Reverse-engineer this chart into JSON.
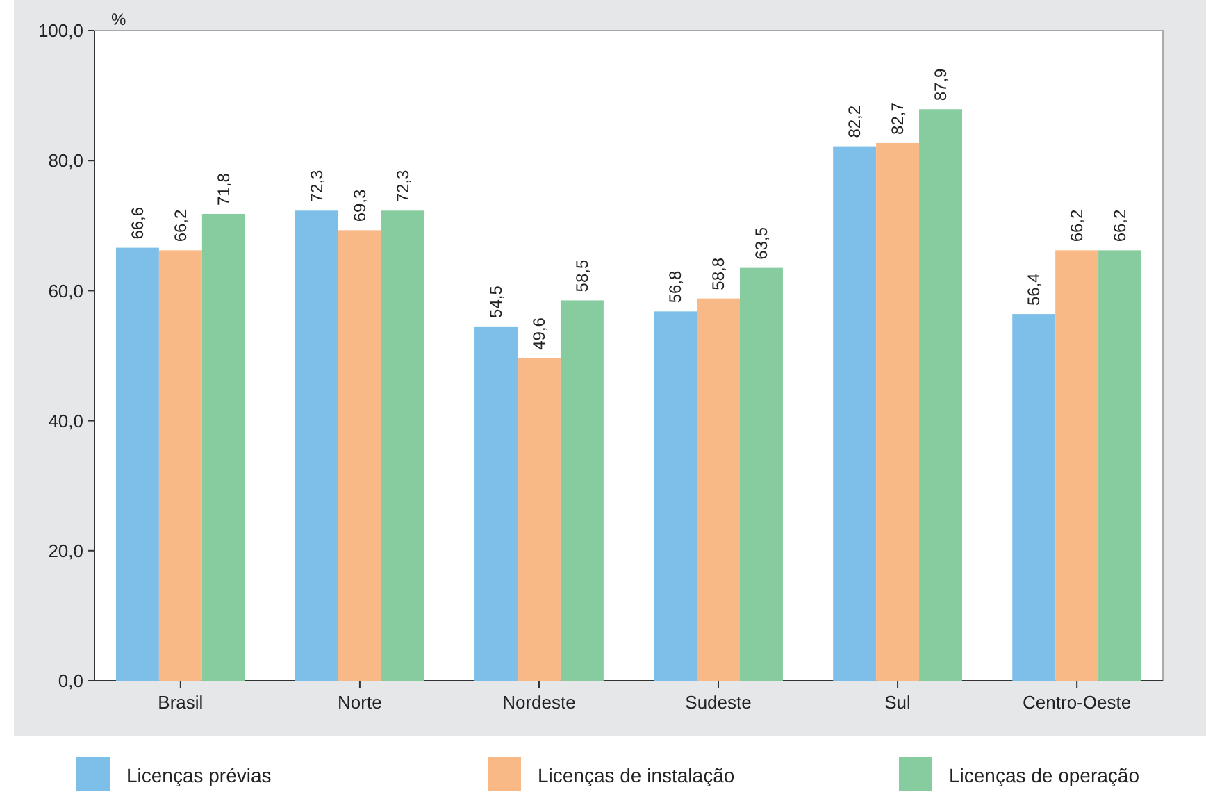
{
  "chart_data": {
    "type": "bar",
    "ylabel": "%",
    "categories": [
      "Brasil",
      "Norte",
      "Nordeste",
      "Sudeste",
      "Sul",
      "Centro-Oeste"
    ],
    "series": [
      {
        "name": "Licenças prévias",
        "color": "#7dbfe9",
        "values": [
          66.6,
          72.3,
          54.5,
          56.8,
          82.2,
          56.4
        ],
        "value_labels": [
          "66,6",
          "72,3",
          "54,5",
          "56,8",
          "82,2",
          "56,4"
        ]
      },
      {
        "name": "Licenças de instalação",
        "color": "#f9b987",
        "values": [
          66.2,
          69.3,
          49.6,
          58.8,
          82.7,
          66.2
        ],
        "value_labels": [
          "66,2",
          "69,3",
          "49,6",
          "58,8",
          "82,7",
          "66,2"
        ]
      },
      {
        "name": "Licenças de operação",
        "color": "#86cc9f",
        "values": [
          71.8,
          72.3,
          58.5,
          63.5,
          87.9,
          66.2
        ],
        "value_labels": [
          "71,8",
          "72,3",
          "58,5",
          "63,5",
          "87,9",
          "66,2"
        ]
      }
    ],
    "ylim": [
      0,
      100
    ],
    "yticks": [
      {
        "value": 0,
        "label": "0,0"
      },
      {
        "value": 20,
        "label": "20,0"
      },
      {
        "value": 40,
        "label": "40,0"
      },
      {
        "value": 60,
        "label": "60,0"
      },
      {
        "value": 80,
        "label": "80,0"
      },
      {
        "value": 100,
        "label": "100,0"
      }
    ],
    "grid": false,
    "legend": "bottom"
  }
}
